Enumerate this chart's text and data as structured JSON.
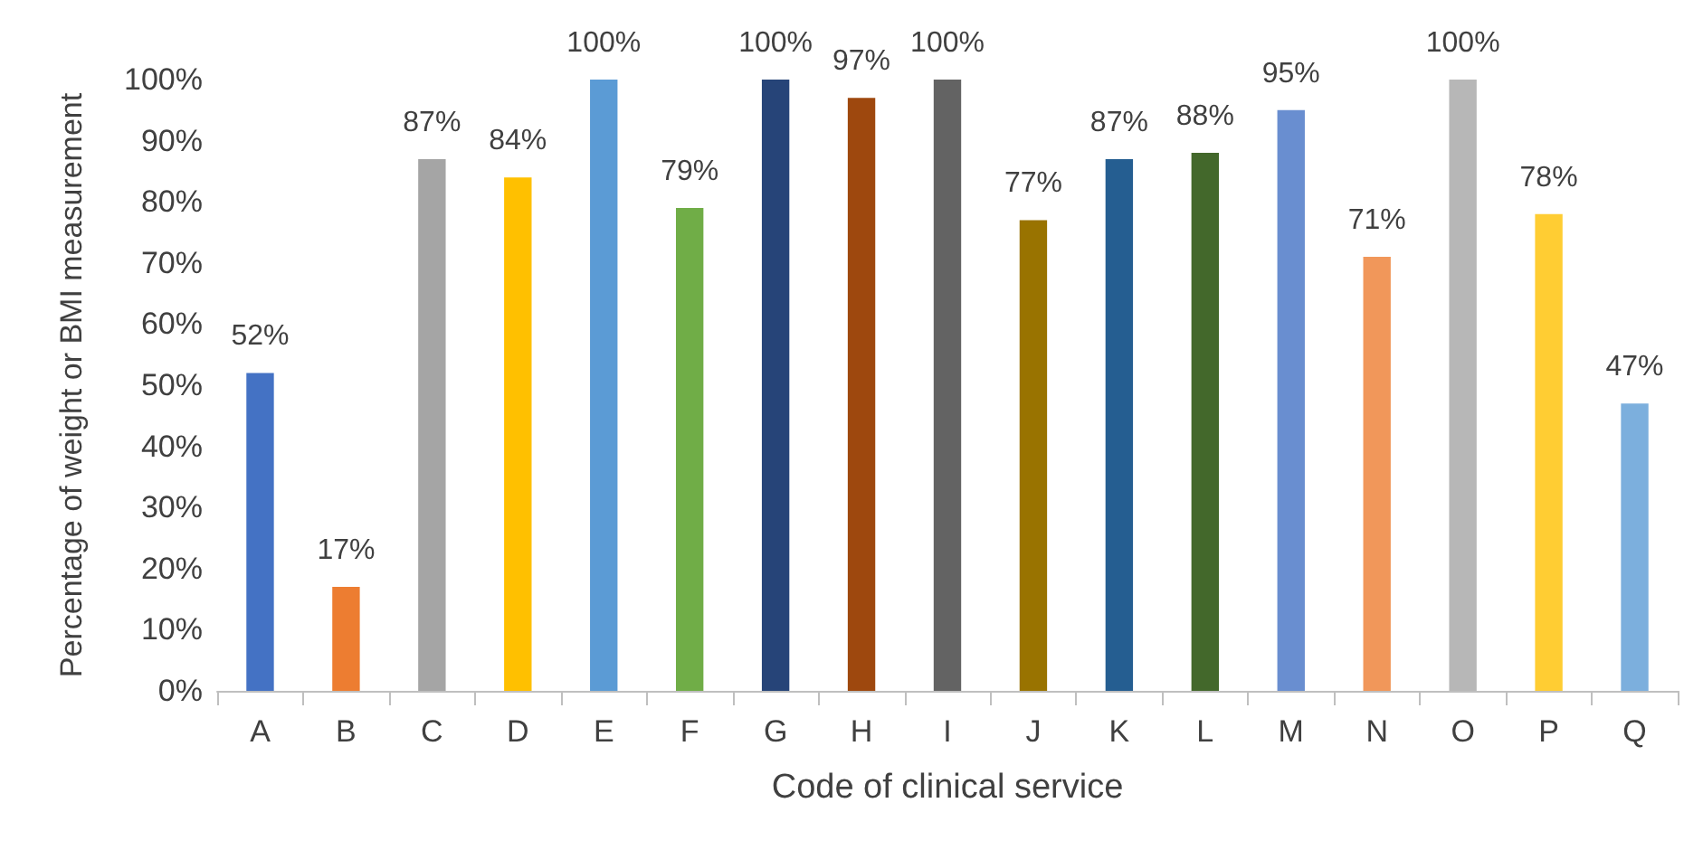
{
  "chart_data": {
    "type": "bar",
    "xlabel": "Code of clinical service",
    "ylabel": "Percentage of weight or BMI measurement",
    "categories": [
      "A",
      "B",
      "C",
      "D",
      "E",
      "F",
      "G",
      "H",
      "I",
      "J",
      "K",
      "L",
      "M",
      "N",
      "O",
      "P",
      "Q"
    ],
    "values": [
      52,
      17,
      87,
      84,
      100,
      79,
      100,
      97,
      100,
      77,
      87,
      88,
      95,
      71,
      100,
      78,
      47
    ],
    "colors": [
      "#4472c4",
      "#ed7d31",
      "#a5a5a5",
      "#ffc000",
      "#5b9bd5",
      "#70ad47",
      "#264478",
      "#9e480e",
      "#636363",
      "#997300",
      "#255e91",
      "#43682b",
      "#698ed0",
      "#f1975a",
      "#b7b7b7",
      "#ffcd33",
      "#7cafdd"
    ],
    "value_labels": [
      "52%",
      "17%",
      "87%",
      "84%",
      "100%",
      "79%",
      "100%",
      "97%",
      "100%",
      "77%",
      "87%",
      "88%",
      "95%",
      "71%",
      "100%",
      "78%",
      "47%"
    ],
    "ylim": [
      0,
      100
    ],
    "yticks": [
      {
        "value": 0,
        "label": "0%"
      },
      {
        "value": 10,
        "label": "10%"
      },
      {
        "value": 20,
        "label": "20%"
      },
      {
        "value": 30,
        "label": "30%"
      },
      {
        "value": 40,
        "label": "40%"
      },
      {
        "value": 50,
        "label": "50%"
      },
      {
        "value": 60,
        "label": "60%"
      },
      {
        "value": 70,
        "label": "70%"
      },
      {
        "value": 80,
        "label": "80%"
      },
      {
        "value": 90,
        "label": "90%"
      },
      {
        "value": 100,
        "label": "100%"
      }
    ],
    "grid": false
  }
}
